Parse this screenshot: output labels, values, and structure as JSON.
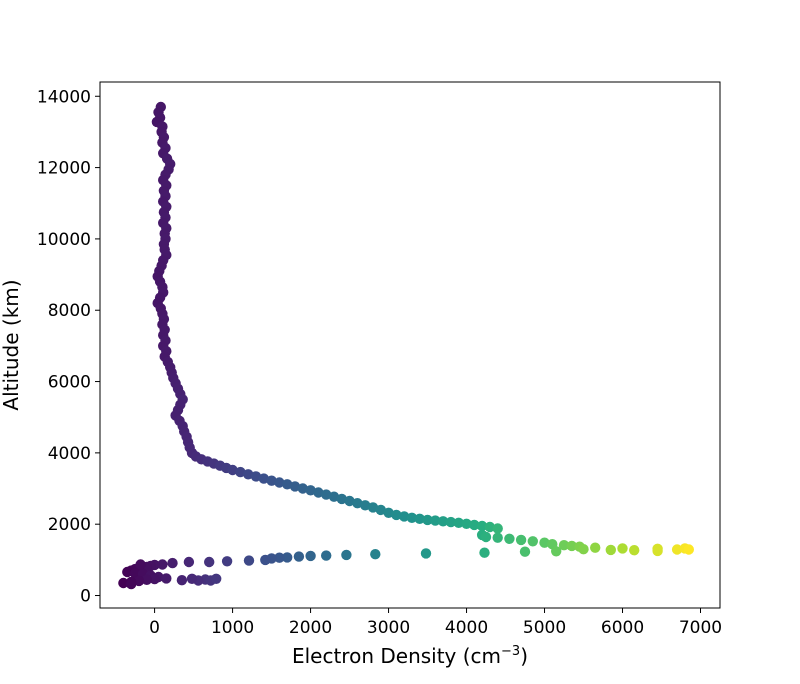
{
  "chart_data": {
    "type": "scatter",
    "xlabel": "Electron Density (cm",
    "xlabel_sup": "−3",
    "xlabel_end": ")",
    "ylabel": "Altitude (km)",
    "xlim": [
      -700,
      7250
    ],
    "ylim": [
      -350,
      14400
    ],
    "xticks": [
      0,
      1000,
      2000,
      3000,
      4000,
      5000,
      6000,
      7000
    ],
    "yticks": [
      0,
      2000,
      4000,
      6000,
      8000,
      10000,
      12000,
      14000
    ],
    "grid": false,
    "colormap": "viridis",
    "color_range": [
      -400,
      6850
    ],
    "series": [
      {
        "points": [
          [
            80,
            13700
          ],
          [
            50,
            13550
          ],
          [
            70,
            13400
          ],
          [
            30,
            13280
          ],
          [
            100,
            13150
          ],
          [
            90,
            13000
          ],
          [
            120,
            12850
          ],
          [
            100,
            12700
          ],
          [
            140,
            12550
          ],
          [
            110,
            12400
          ],
          [
            160,
            12250
          ],
          [
            200,
            12100
          ],
          [
            180,
            11950
          ],
          [
            140,
            11800
          ],
          [
            110,
            11650
          ],
          [
            150,
            11500
          ],
          [
            120,
            11350
          ],
          [
            140,
            11200
          ],
          [
            110,
            11050
          ],
          [
            150,
            10900
          ],
          [
            120,
            10750
          ],
          [
            140,
            10600
          ],
          [
            110,
            10450
          ],
          [
            150,
            10300
          ],
          [
            130,
            10150
          ],
          [
            140,
            10000
          ],
          [
            120,
            9850
          ],
          [
            130,
            9700
          ],
          [
            150,
            9550
          ],
          [
            110,
            9400
          ],
          [
            90,
            9250
          ],
          [
            60,
            9100
          ],
          [
            40,
            8950
          ],
          [
            70,
            8800
          ],
          [
            100,
            8650
          ],
          [
            110,
            8500
          ],
          [
            70,
            8350
          ],
          [
            40,
            8200
          ],
          [
            80,
            8050
          ],
          [
            100,
            7900
          ],
          [
            120,
            7750
          ],
          [
            100,
            7600
          ],
          [
            130,
            7450
          ],
          [
            110,
            7300
          ],
          [
            140,
            7150
          ],
          [
            110,
            7000
          ],
          [
            150,
            6850
          ],
          [
            130,
            6700
          ],
          [
            170,
            6550
          ],
          [
            200,
            6400
          ],
          [
            220,
            6250
          ],
          [
            240,
            6100
          ],
          [
            270,
            5950
          ],
          [
            300,
            5800
          ],
          [
            330,
            5650
          ],
          [
            360,
            5500
          ],
          [
            330,
            5350
          ],
          [
            300,
            5200
          ],
          [
            270,
            5050
          ],
          [
            320,
            4900
          ],
          [
            360,
            4750
          ],
          [
            380,
            4600
          ],
          [
            410,
            4450
          ],
          [
            430,
            4300
          ],
          [
            450,
            4150
          ],
          [
            480,
            4000
          ],
          [
            530,
            3900
          ],
          [
            600,
            3820
          ],
          [
            680,
            3760
          ],
          [
            760,
            3700
          ],
          [
            840,
            3640
          ],
          [
            920,
            3580
          ],
          [
            1000,
            3520
          ],
          [
            1100,
            3460
          ],
          [
            1200,
            3400
          ],
          [
            1300,
            3340
          ],
          [
            1400,
            3280
          ],
          [
            1500,
            3220
          ],
          [
            1600,
            3170
          ],
          [
            1700,
            3120
          ],
          [
            1800,
            3060
          ],
          [
            1900,
            3000
          ],
          [
            2000,
            2950
          ],
          [
            2100,
            2890
          ],
          [
            2200,
            2830
          ],
          [
            2300,
            2770
          ],
          [
            2400,
            2710
          ],
          [
            2500,
            2650
          ],
          [
            2600,
            2590
          ],
          [
            2700,
            2530
          ],
          [
            2800,
            2470
          ],
          [
            2900,
            2400
          ],
          [
            3000,
            2320
          ],
          [
            3100,
            2260
          ],
          [
            3200,
            2220
          ],
          [
            3300,
            2180
          ],
          [
            3400,
            2150
          ],
          [
            3500,
            2120
          ],
          [
            3600,
            2100
          ],
          [
            3700,
            2080
          ],
          [
            3800,
            2060
          ],
          [
            3900,
            2040
          ],
          [
            4000,
            2010
          ],
          [
            4100,
            1980
          ],
          [
            4200,
            1950
          ],
          [
            4300,
            1920
          ],
          [
            4400,
            1880
          ],
          [
            4200,
            1700
          ],
          [
            4250,
            1640
          ],
          [
            4400,
            1620
          ],
          [
            4550,
            1590
          ],
          [
            4700,
            1560
          ],
          [
            4850,
            1520
          ],
          [
            5000,
            1480
          ],
          [
            5100,
            1440
          ],
          [
            5250,
            1410
          ],
          [
            5350,
            1390
          ],
          [
            5450,
            1370
          ],
          [
            5500,
            1300
          ],
          [
            5650,
            1340
          ],
          [
            5850,
            1280
          ],
          [
            6000,
            1320
          ],
          [
            6150,
            1270
          ],
          [
            6450,
            1310
          ],
          [
            6450,
            1250
          ],
          [
            6700,
            1290
          ],
          [
            6800,
            1320
          ],
          [
            6850,
            1290
          ],
          [
            5150,
            1240
          ],
          [
            4750,
            1230
          ],
          [
            4230,
            1200
          ],
          [
            3480,
            1180
          ],
          [
            2830,
            1160
          ],
          [
            2460,
            1140
          ],
          [
            2200,
            1120
          ],
          [
            2000,
            1110
          ],
          [
            1850,
            1090
          ],
          [
            1700,
            1070
          ],
          [
            1600,
            1060
          ],
          [
            1500,
            1040
          ],
          [
            1420,
            1000
          ],
          [
            1210,
            980
          ],
          [
            930,
            960
          ],
          [
            700,
            940
          ],
          [
            440,
            940
          ],
          [
            230,
            910
          ],
          [
            100,
            870
          ],
          [
            0,
            860
          ],
          [
            -50,
            830
          ],
          [
            -100,
            800
          ],
          [
            -200,
            780
          ],
          [
            -250,
            740
          ],
          [
            -300,
            700
          ],
          [
            -350,
            660
          ],
          [
            -250,
            620
          ],
          [
            -150,
            600
          ],
          [
            -50,
            560
          ],
          [
            50,
            520
          ],
          [
            150,
            480
          ],
          [
            0,
            460
          ],
          [
            -100,
            440
          ],
          [
            -200,
            410
          ],
          [
            -300,
            380
          ],
          [
            -400,
            350
          ],
          [
            -300,
            320
          ],
          [
            650,
            450
          ],
          [
            720,
            420
          ],
          [
            790,
            470
          ],
          [
            560,
            420
          ],
          [
            480,
            470
          ],
          [
            350,
            430
          ],
          [
            -180,
            870
          ]
        ]
      }
    ]
  }
}
